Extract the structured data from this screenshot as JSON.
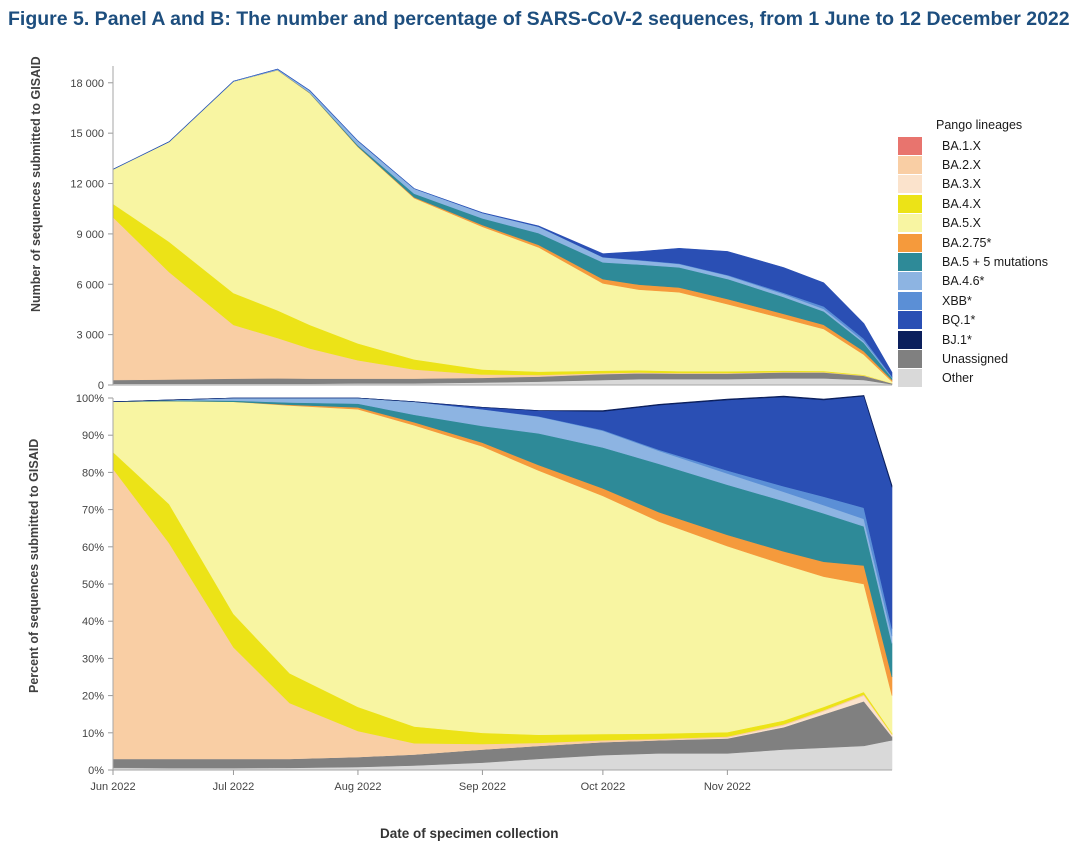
{
  "title": "Figure 5. Panel A and B: The number and percentage of SARS-CoV-2 sequences, from 1 June to 12 December 2022",
  "legend": {
    "title": "Pango lineages",
    "items": [
      {
        "label": "BA.1.X",
        "color": "#e8746e"
      },
      {
        "label": "BA.2.X",
        "color": "#f9cea4"
      },
      {
        "label": "BA.3.X",
        "color": "#fbe3cc"
      },
      {
        "label": "BA.4.X",
        "color": "#ece317"
      },
      {
        "label": "BA.5.X",
        "color": "#f8f5a2"
      },
      {
        "label": "BA.2.75*",
        "color": "#f59a3c"
      },
      {
        "label": "BA.5 + 5 mutations",
        "color": "#2e8a98"
      },
      {
        "label": "BA.4.6*",
        "color": "#8db4e2"
      },
      {
        "label": "XBB*",
        "color": "#5b8fd6"
      },
      {
        "label": "BQ.1*",
        "color": "#2a4fb4"
      },
      {
        "label": "BJ.1*",
        "color": "#0b1f5c"
      },
      {
        "label": "Unassigned",
        "color": "#808080"
      },
      {
        "label": "Other",
        "color": "#d9d9d9"
      }
    ]
  },
  "xlabel": "Date of specimen collection",
  "chart_data": [
    {
      "panel": "A",
      "type": "area",
      "stacked": true,
      "ylabel": "Number of sequences submitted to GISAID",
      "ylim": [
        0,
        19000
      ],
      "yticks": [
        0,
        3000,
        6000,
        9000,
        12000,
        15000,
        18000
      ],
      "ytick_labels": [
        "0",
        "3 000",
        "6 000",
        "9 000",
        "12 000",
        "15 000",
        "18 000"
      ],
      "x": [
        "2022-06-01",
        "2022-06-15",
        "2022-07-01",
        "2022-07-12",
        "2022-07-20",
        "2022-08-01",
        "2022-08-15",
        "2022-09-01",
        "2022-09-15",
        "2022-10-01",
        "2022-10-10",
        "2022-10-20",
        "2022-11-01",
        "2022-11-15",
        "2022-11-25",
        "2022-12-05",
        "2022-12-12"
      ],
      "series": [
        {
          "name": "Other",
          "values": [
            80,
            80,
            80,
            80,
            80,
            100,
            100,
            150,
            200,
            300,
            350,
            350,
            350,
            400,
            400,
            300,
            50
          ]
        },
        {
          "name": "Unassigned",
          "values": [
            220,
            250,
            300,
            320,
            300,
            280,
            280,
            280,
            300,
            350,
            350,
            330,
            330,
            350,
            350,
            250,
            50
          ]
        },
        {
          "name": "BA.2.X",
          "values": [
            9700,
            6400,
            3200,
            2400,
            1800,
            1100,
            550,
            200,
            100,
            60,
            50,
            40,
            40,
            30,
            30,
            20,
            5
          ]
        },
        {
          "name": "BA.4.X",
          "values": [
            800,
            1800,
            1900,
            1650,
            1400,
            1000,
            600,
            300,
            200,
            150,
            130,
            110,
            100,
            80,
            60,
            40,
            5
          ]
        },
        {
          "name": "BA.5.X",
          "values": [
            2050,
            5960,
            12600,
            14300,
            13800,
            11700,
            9600,
            8500,
            7400,
            5200,
            4800,
            4700,
            4000,
            3100,
            2500,
            1200,
            100
          ]
        },
        {
          "name": "BA.2.75*",
          "values": [
            0,
            0,
            0,
            10,
            20,
            30,
            50,
            100,
            150,
            250,
            300,
            280,
            300,
            280,
            250,
            200,
            100
          ]
        },
        {
          "name": "BA.5 + 5 mutations",
          "values": [
            0,
            0,
            0,
            5,
            20,
            80,
            220,
            400,
            700,
            1000,
            1200,
            1200,
            1200,
            1000,
            800,
            500,
            120
          ]
        },
        {
          "name": "BA.4.6*",
          "values": [
            0,
            0,
            20,
            50,
            120,
            250,
            300,
            320,
            380,
            300,
            250,
            200,
            200,
            180,
            150,
            100,
            30
          ]
        },
        {
          "name": "XBB*",
          "values": [
            0,
            0,
            0,
            0,
            0,
            0,
            0,
            0,
            5,
            10,
            20,
            30,
            40,
            80,
            150,
            150,
            40
          ]
        },
        {
          "name": "BQ.1*",
          "values": [
            0,
            0,
            0,
            0,
            0,
            0,
            0,
            10,
            40,
            200,
            500,
            900,
            1400,
            1500,
            1400,
            900,
            250
          ]
        }
      ]
    },
    {
      "panel": "B",
      "type": "area",
      "stacked": true,
      "ylabel": "Percent of sequences submitted to GISAID",
      "ylim": [
        0,
        100
      ],
      "yticks": [
        0,
        10,
        20,
        30,
        40,
        50,
        60,
        70,
        80,
        90,
        100
      ],
      "ytick_labels": [
        "0%",
        "10%",
        "20%",
        "30%",
        "40%",
        "50%",
        "60%",
        "70%",
        "80%",
        "90%",
        "100%"
      ],
      "xtick_labels": [
        "Jun 2022",
        "Jul 2022",
        "Aug 2022",
        "Sep 2022",
        "Oct 2022",
        "Nov 2022"
      ],
      "x": [
        "2022-06-01",
        "2022-06-15",
        "2022-07-01",
        "2022-07-15",
        "2022-08-01",
        "2022-08-15",
        "2022-09-01",
        "2022-09-15",
        "2022-10-01",
        "2022-10-15",
        "2022-11-01",
        "2022-11-15",
        "2022-11-25",
        "2022-12-05",
        "2022-12-12"
      ],
      "series": [
        {
          "name": "Other",
          "values": [
            0.6,
            0.5,
            0.5,
            0.6,
            0.8,
            1.2,
            2.0,
            3.0,
            4.0,
            4.5,
            4.5,
            5.5,
            6.0,
            6.5,
            8.0
          ]
        },
        {
          "name": "Unassigned",
          "values": [
            2.4,
            2.5,
            2.5,
            2.4,
            2.7,
            3.0,
            3.5,
            3.5,
            3.5,
            3.5,
            4.0,
            6.0,
            9.0,
            12.0,
            1.0
          ]
        },
        {
          "name": "BA.3.X",
          "values": [
            0,
            0,
            0,
            0,
            0,
            0,
            0,
            0,
            0,
            0,
            0.2,
            0.5,
            0.8,
            1.5,
            0.5
          ]
        },
        {
          "name": "BA.2.X",
          "values": [
            78,
            58,
            30,
            15,
            7,
            3,
            1.5,
            0.8,
            0.5,
            0.4,
            0.3,
            0.3,
            0.3,
            0.3,
            0.2
          ]
        },
        {
          "name": "BA.4.X",
          "values": [
            4.5,
            10.5,
            9,
            8,
            6.5,
            4.5,
            3,
            2.2,
            1.7,
            1.4,
            1.2,
            1.0,
            0.9,
            0.7,
            0.3
          ]
        },
        {
          "name": "BA.5.X",
          "values": [
            13.5,
            27.7,
            57,
            72,
            80,
            81,
            77,
            71,
            64,
            57,
            50,
            42,
            35,
            29,
            10
          ]
        },
        {
          "name": "BA.2.75*",
          "values": [
            0,
            0,
            0,
            0.2,
            0.5,
            0.8,
            1.0,
            1.5,
            2.0,
            2.5,
            3.0,
            3.5,
            4.0,
            5.0,
            5.0
          ]
        },
        {
          "name": "BA.5 + 5 mutations",
          "values": [
            0,
            0.2,
            0.3,
            0.6,
            1.0,
            2.0,
            4.5,
            8.5,
            11,
            13,
            13.5,
            13.5,
            13.0,
            10.5,
            9.0
          ]
        },
        {
          "name": "BA.4.6*",
          "values": [
            0,
            0.1,
            0.7,
            1.2,
            1.5,
            3.5,
            4.5,
            4.5,
            4.5,
            3.5,
            3.0,
            2.5,
            2.2,
            2.0,
            2.0
          ]
        },
        {
          "name": "XBB*",
          "values": [
            0,
            0,
            0,
            0,
            0,
            0,
            0,
            0.1,
            0.2,
            0.3,
            0.8,
            1.5,
            2.3,
            3.0,
            2.0
          ]
        },
        {
          "name": "BQ.1*",
          "values": [
            0,
            0,
            0,
            0,
            0,
            0,
            0.5,
            1.5,
            5.0,
            12.0,
            19.0,
            24.0,
            26.0,
            30.0,
            38.0
          ]
        },
        {
          "name": "BJ.1*",
          "values": [
            0,
            0,
            0,
            0,
            0,
            0,
            0,
            0,
            0.2,
            0.2,
            0.2,
            0.2,
            0.2,
            0.2,
            0.5
          ]
        }
      ]
    }
  ]
}
